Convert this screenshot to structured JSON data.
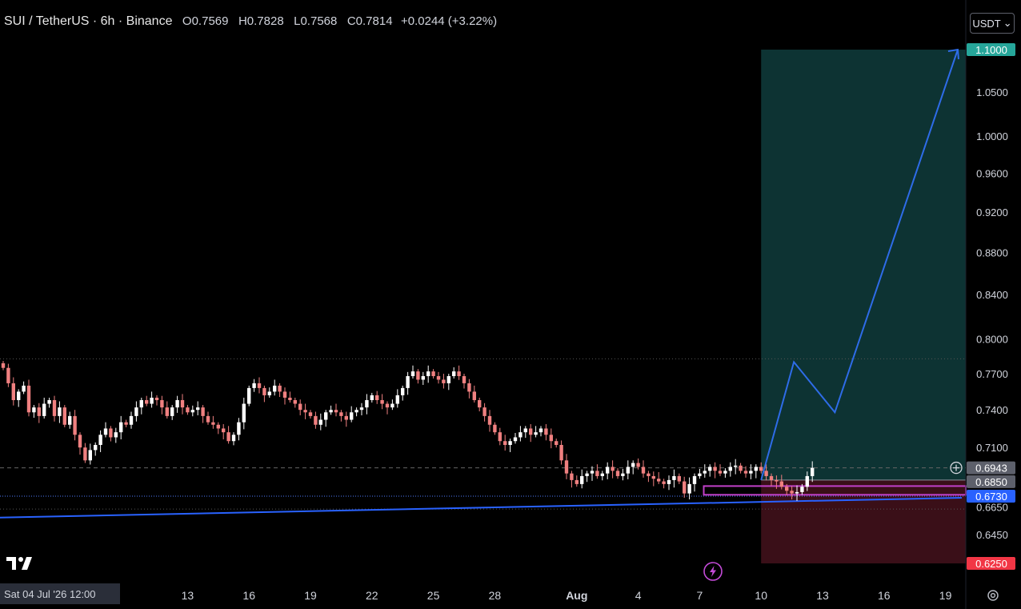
{
  "header": {
    "symbol": "SUI / TetherUS · 6h · Binance",
    "open_label": "O",
    "open": "0.7569",
    "high_label": "H",
    "high": "0.7828",
    "low_label": "L",
    "low": "0.7568",
    "close_label": "C",
    "close": "0.7814",
    "change": "+0.0244 (+3.22%)"
  },
  "currency_button": {
    "label": "USDT",
    "icon": "chevron-down-icon"
  },
  "date_badge": "Sat 04 Jul '26   12:00",
  "colors": {
    "background": "#000000",
    "up": "#ffffff",
    "down": "#f08080",
    "trendline": "#2962ff",
    "projection": "#2e6ce8",
    "target_zone": "#0d3333",
    "stop_zone": "#3a0f18",
    "entry_box": "#c040c8",
    "price_badge_last": "#5d606b",
    "price_badge_blue": "#2962ff",
    "price_badge_target": "#26a69a",
    "price_badge_stop": "#f23645"
  },
  "chart_data": {
    "type": "candlestick",
    "ylim": [
      0.62,
      1.115
    ],
    "y_axis_labels": [
      "1.0500",
      "1.0000",
      "0.9600",
      "0.9200",
      "0.8800",
      "0.8400",
      "0.8000",
      "0.7700",
      "0.7400",
      "0.7100",
      "0.6650",
      "0.6450"
    ],
    "y_axis_values": [
      1.05,
      1.0,
      0.96,
      0.92,
      0.88,
      0.84,
      0.8,
      0.77,
      0.74,
      0.71,
      0.665,
      0.645
    ],
    "x_axis_labels": [
      "13",
      "16",
      "19",
      "22",
      "25",
      "28",
      "Aug",
      "4",
      "7",
      "10",
      "13",
      "16",
      "19"
    ],
    "x_axis_days": [
      9,
      12,
      15,
      18,
      21,
      24,
      28,
      31,
      34,
      37,
      40,
      43,
      46
    ],
    "x_axis_unit": "days since Jul 4 (6h bars)",
    "price_badges": [
      {
        "label": "1.1000",
        "value": 1.1,
        "kind": "target"
      },
      {
        "label": "0.6943",
        "value": 0.6943,
        "kind": "last"
      },
      {
        "label": "0.6850",
        "value": 0.685,
        "kind": "last"
      },
      {
        "label": "0.6730",
        "value": 0.673,
        "kind": "blue"
      },
      {
        "label": "0.6250",
        "value": 0.625,
        "kind": "stop"
      }
    ],
    "horizontal_lines": [
      {
        "value": 0.7828,
        "style": "dotted"
      },
      {
        "value": 0.6943,
        "style": "dashed"
      },
      {
        "value": 0.673,
        "style": "dotted-blue"
      },
      {
        "value": 0.6635,
        "style": "dotted"
      }
    ],
    "trendline": [
      [
        -0.2,
        0.6573
      ],
      [
        46.8,
        0.6718
      ]
    ],
    "position": {
      "entry_day": 37,
      "exit_day": 46.8,
      "entry": 0.685,
      "target": 1.1,
      "stop": 0.625
    },
    "projection_path": [
      [
        37,
        0.685
      ],
      [
        38.6,
        0.78
      ],
      [
        40.6,
        0.738
      ],
      [
        46.6,
        1.1
      ]
    ],
    "entry_box": {
      "day_from": 34.2,
      "day_to": 46.8,
      "top": 0.6805,
      "bottom": 0.674
    },
    "closes": [
      0.775,
      0.762,
      0.748,
      0.755,
      0.76,
      0.738,
      0.742,
      0.735,
      0.745,
      0.748,
      0.735,
      0.742,
      0.728,
      0.735,
      0.72,
      0.71,
      0.7,
      0.708,
      0.712,
      0.72,
      0.725,
      0.718,
      0.722,
      0.73,
      0.728,
      0.735,
      0.742,
      0.748,
      0.745,
      0.75,
      0.748,
      0.742,
      0.735,
      0.742,
      0.748,
      0.742,
      0.738,
      0.74,
      0.742,
      0.735,
      0.73,
      0.728,
      0.725,
      0.722,
      0.715,
      0.72,
      0.73,
      0.745,
      0.758,
      0.762,
      0.758,
      0.752,
      0.755,
      0.76,
      0.755,
      0.75,
      0.748,
      0.745,
      0.74,
      0.738,
      0.735,
      0.728,
      0.732,
      0.738,
      0.74,
      0.738,
      0.735,
      0.732,
      0.738,
      0.74,
      0.742,
      0.748,
      0.752,
      0.748,
      0.745,
      0.742,
      0.745,
      0.752,
      0.758,
      0.768,
      0.772,
      0.765,
      0.768,
      0.772,
      0.768,
      0.765,
      0.762,
      0.768,
      0.772,
      0.768,
      0.762,
      0.755,
      0.748,
      0.742,
      0.735,
      0.728,
      0.722,
      0.715,
      0.712,
      0.715,
      0.718,
      0.722,
      0.725,
      0.72,
      0.722,
      0.725,
      0.72,
      0.715,
      0.712,
      0.7,
      0.69,
      0.685,
      0.682,
      0.688,
      0.69,
      0.692,
      0.688,
      0.69,
      0.695,
      0.692,
      0.688,
      0.69,
      0.695,
      0.698,
      0.695,
      0.69,
      0.688,
      0.686,
      0.684,
      0.682,
      0.685,
      0.688,
      0.684,
      0.675,
      0.682,
      0.688,
      0.69,
      0.692,
      0.695,
      0.692,
      0.69,
      0.692,
      0.695,
      0.696,
      0.692,
      0.69,
      0.692,
      0.695,
      0.692,
      0.688,
      0.685,
      0.684,
      0.68,
      0.677,
      0.675,
      0.676,
      0.68,
      0.688,
      0.6943
    ]
  }
}
